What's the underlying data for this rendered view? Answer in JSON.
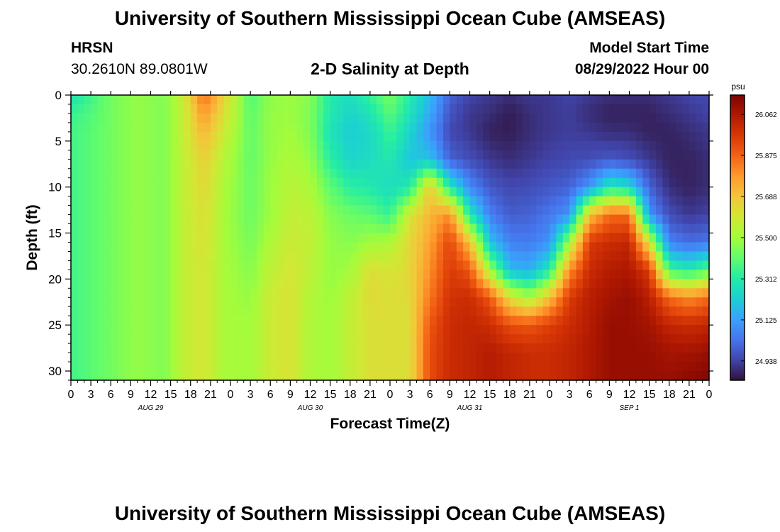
{
  "header": {
    "title": "University of Southern Mississippi Ocean Cube (AMSEAS)",
    "station": "HRSN",
    "coords": "30.2610N  89.0801W",
    "subtitle": "2-D Salinity at Depth",
    "model_start_label": "Model Start Time",
    "model_start_value": "08/29/2022 Hour 00"
  },
  "footer": {
    "title": "University of Southern Mississippi Ocean Cube (AMSEAS)"
  },
  "chart_data": {
    "type": "heatmap",
    "title": "2-D Salinity at Depth",
    "xlabel": "Forecast Time(Z)",
    "ylabel": "Depth (ft)",
    "x_range_hours": [
      0,
      96
    ],
    "y_range_ft": [
      0,
      31
    ],
    "y_inverted": true,
    "xtick_hours": [
      0,
      3,
      6,
      9,
      12,
      15,
      18,
      21,
      24,
      27,
      30,
      33,
      36,
      39,
      42,
      45,
      48,
      51,
      54,
      57,
      60,
      63,
      66,
      69,
      72,
      75,
      78,
      81,
      84,
      87,
      90,
      93,
      96
    ],
    "xtick_labels": [
      "0",
      "3",
      "6",
      "9",
      "12",
      "15",
      "18",
      "21",
      "0",
      "3",
      "6",
      "9",
      "12",
      "15",
      "18",
      "21",
      "0",
      "3",
      "6",
      "9",
      "12",
      "15",
      "18",
      "21",
      "0",
      "3",
      "6",
      "9",
      "12",
      "15",
      "18",
      "21",
      "0"
    ],
    "day_labels": [
      {
        "text": "AUG 29",
        "hour": 12
      },
      {
        "text": "AUG 30",
        "hour": 36
      },
      {
        "text": "AUG 31",
        "hour": 60
      },
      {
        "text": "SEP 1",
        "hour": 84
      }
    ],
    "yticks": [
      0,
      5,
      10,
      15,
      20,
      25,
      30
    ],
    "colorbar": {
      "unit": "psu",
      "min": 24.85,
      "max": 26.15,
      "tick_values": [
        26.062,
        25.875,
        25.688,
        25.5,
        25.312,
        25.125,
        24.938
      ],
      "tick_labels": [
        "26.062",
        "25.875",
        "25.688",
        "25.500",
        "25.312",
        "25.125",
        "24.938"
      ],
      "stops": [
        "#30123b",
        "#4145ab",
        "#4675ed",
        "#39a2fc",
        "#1bcfd4",
        "#24eca6",
        "#61fc6c",
        "#a4fc3b",
        "#d1e834",
        "#f3c63a",
        "#fe9b2d",
        "#f36315",
        "#d93806",
        "#b11901",
        "#7a0403"
      ]
    },
    "profile_depths_ft": [
      0,
      2,
      4,
      7,
      10,
      13,
      16,
      19,
      22,
      25,
      28,
      31
    ],
    "salinity_profiles_psu": [
      {
        "hour": 0,
        "values": [
          25.28,
          25.34,
          25.36,
          25.36,
          25.36,
          25.36,
          25.36,
          25.36,
          25.36,
          25.36,
          25.36,
          25.36
        ]
      },
      {
        "hour": 6,
        "values": [
          25.43,
          25.43,
          25.43,
          25.43,
          25.43,
          25.43,
          25.43,
          25.43,
          25.43,
          25.43,
          25.43,
          25.43
        ]
      },
      {
        "hour": 10,
        "values": [
          25.48,
          25.48,
          25.48,
          25.48,
          25.48,
          25.48,
          25.48,
          25.48,
          25.48,
          25.48,
          25.48,
          25.48
        ]
      },
      {
        "hour": 14,
        "values": [
          25.45,
          25.45,
          25.45,
          25.45,
          25.45,
          25.45,
          25.45,
          25.45,
          25.45,
          25.45,
          25.45,
          25.45
        ]
      },
      {
        "hour": 17,
        "values": [
          25.58,
          25.57,
          25.57,
          25.56,
          25.56,
          25.56,
          25.56,
          25.56,
          25.56,
          25.56,
          25.56,
          25.56
        ]
      },
      {
        "hour": 20,
        "values": [
          25.86,
          25.78,
          25.72,
          25.66,
          25.64,
          25.62,
          25.61,
          25.6,
          25.6,
          25.6,
          25.6,
          25.6
        ]
      },
      {
        "hour": 23,
        "values": [
          25.66,
          25.62,
          25.58,
          25.54,
          25.52,
          25.51,
          25.51,
          25.51,
          25.51,
          25.51,
          25.51,
          25.51
        ]
      },
      {
        "hour": 27,
        "values": [
          25.38,
          25.4,
          25.41,
          25.41,
          25.42,
          25.42,
          25.44,
          25.46,
          25.48,
          25.5,
          25.5,
          25.5
        ]
      },
      {
        "hour": 30,
        "values": [
          25.47,
          25.48,
          25.48,
          25.48,
          25.49,
          25.49,
          25.52,
          25.55,
          25.58,
          25.58,
          25.58,
          25.58
        ]
      },
      {
        "hour": 33,
        "values": [
          25.49,
          25.49,
          25.5,
          25.52,
          25.54,
          25.56,
          25.58,
          25.6,
          25.61,
          25.61,
          25.61,
          25.61
        ]
      },
      {
        "hour": 36,
        "values": [
          25.46,
          25.45,
          25.45,
          25.48,
          25.52,
          25.55,
          25.56,
          25.55,
          25.53,
          25.52,
          25.52,
          25.52
        ]
      },
      {
        "hour": 39,
        "values": [
          25.3,
          25.3,
          25.28,
          25.32,
          25.4,
          25.46,
          25.48,
          25.48,
          25.49,
          25.5,
          25.5,
          25.5
        ]
      },
      {
        "hour": 42,
        "values": [
          25.27,
          25.24,
          25.22,
          25.24,
          25.32,
          25.42,
          25.46,
          25.5,
          25.55,
          25.56,
          25.56,
          25.56
        ]
      },
      {
        "hour": 45,
        "values": [
          25.34,
          25.28,
          25.25,
          25.26,
          25.3,
          25.4,
          25.5,
          25.62,
          25.63,
          25.62,
          25.62,
          25.62
        ]
      },
      {
        "hour": 48,
        "values": [
          25.44,
          25.4,
          25.35,
          25.3,
          25.26,
          25.34,
          25.52,
          25.6,
          25.62,
          25.62,
          25.62,
          25.62
        ]
      },
      {
        "hour": 51,
        "values": [
          25.31,
          25.28,
          25.24,
          25.2,
          25.3,
          25.6,
          25.64,
          25.64,
          25.63,
          25.62,
          25.62,
          25.62
        ]
      },
      {
        "hour": 54,
        "values": [
          25.18,
          25.15,
          25.1,
          25.2,
          25.68,
          25.72,
          25.76,
          25.8,
          25.84,
          25.9,
          25.92,
          25.92
        ]
      },
      {
        "hour": 57,
        "values": [
          25.0,
          24.97,
          24.95,
          25.0,
          25.3,
          25.8,
          25.94,
          25.96,
          25.98,
          26.0,
          26.0,
          26.0
        ]
      },
      {
        "hour": 60,
        "values": [
          24.94,
          24.92,
          24.92,
          24.96,
          25.08,
          25.3,
          25.7,
          25.9,
          26.0,
          26.02,
          26.02,
          26.02
        ]
      },
      {
        "hour": 63,
        "values": [
          24.92,
          24.9,
          24.88,
          24.92,
          24.98,
          25.06,
          25.2,
          25.5,
          25.9,
          26.0,
          26.05,
          26.05
        ]
      },
      {
        "hour": 66,
        "values": [
          24.9,
          24.87,
          24.87,
          24.9,
          24.95,
          24.99,
          25.06,
          25.18,
          25.62,
          25.92,
          26.02,
          26.02
        ]
      },
      {
        "hour": 69,
        "values": [
          24.92,
          24.9,
          24.9,
          24.92,
          24.96,
          25.0,
          25.05,
          25.15,
          25.5,
          25.9,
          26.0,
          26.0
        ]
      },
      {
        "hour": 72,
        "values": [
          24.92,
          24.92,
          24.92,
          24.94,
          24.98,
          25.04,
          25.1,
          25.3,
          25.7,
          25.95,
          26.0,
          26.0
        ]
      },
      {
        "hour": 75,
        "values": [
          24.94,
          24.93,
          24.93,
          24.95,
          25.0,
          25.1,
          25.5,
          25.8,
          25.96,
          26.0,
          26.02,
          26.02
        ]
      },
      {
        "hour": 78,
        "values": [
          24.92,
          24.9,
          24.92,
          24.96,
          25.1,
          25.7,
          25.96,
          26.0,
          26.04,
          26.05,
          26.06,
          26.06
        ]
      },
      {
        "hour": 81,
        "values": [
          24.9,
          24.88,
          24.9,
          24.98,
          25.3,
          25.86,
          26.0,
          26.05,
          26.08,
          26.1,
          26.1,
          26.1
        ]
      },
      {
        "hour": 84,
        "values": [
          24.9,
          24.88,
          24.9,
          24.96,
          25.25,
          25.86,
          26.02,
          26.06,
          26.1,
          26.1,
          26.1,
          26.1
        ]
      },
      {
        "hour": 87,
        "values": [
          24.9,
          24.88,
          24.88,
          24.92,
          25.0,
          25.1,
          25.6,
          25.96,
          26.04,
          26.08,
          26.1,
          26.1
        ]
      },
      {
        "hour": 90,
        "values": [
          24.92,
          24.9,
          24.88,
          24.88,
          24.9,
          24.96,
          25.06,
          25.36,
          25.86,
          26.02,
          26.08,
          26.1
        ]
      },
      {
        "hour": 93,
        "values": [
          24.94,
          24.92,
          24.9,
          24.88,
          24.88,
          24.92,
          25.02,
          25.3,
          25.8,
          26.0,
          26.08,
          26.12
        ]
      },
      {
        "hour": 96,
        "values": [
          24.95,
          24.94,
          24.92,
          24.9,
          24.9,
          24.94,
          25.04,
          25.4,
          25.86,
          26.02,
          26.1,
          26.14
        ]
      }
    ]
  }
}
